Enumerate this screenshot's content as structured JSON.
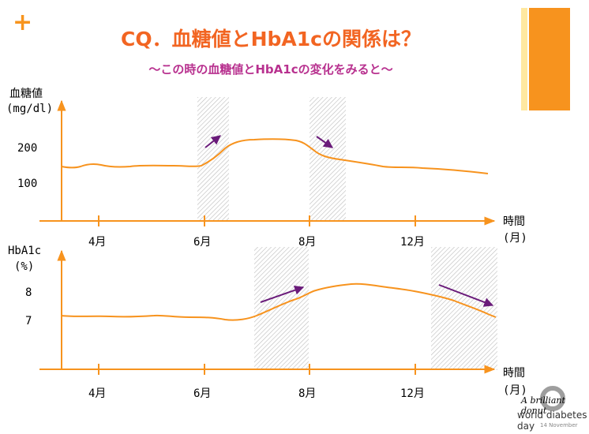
{
  "header": {
    "plus_icon": "+",
    "title": "CQ．血糖値とHbA1cの関係は？",
    "subtitle": "〜この時の血糖値とHbA1cの変化をみると〜"
  },
  "chart_data": [
    {
      "type": "line",
      "ylabel_line1": "血糖値",
      "ylabel_line2": "(mg/dl)",
      "yticks": [
        "200",
        "100"
      ],
      "xticks": [
        "4月",
        "6月",
        "8月",
        "12月"
      ],
      "xlabel_line1": "時間",
      "xlabel_line2": "(月)",
      "note": "shaded regions with arrows mark rising and falling periods"
    },
    {
      "type": "line",
      "ylabel_line1": "HbA1c",
      "ylabel_line2": "(%)",
      "yticks": [
        "8",
        "7"
      ],
      "xticks": [
        "4月",
        "6月",
        "8月",
        "12月"
      ],
      "xlabel_line1": "時間",
      "xlabel_line2": "(月)"
    }
  ],
  "colors": {
    "accent_orange": "#F7931E",
    "title_orange": "#F26522",
    "subtitle_magenta": "#B8318F",
    "arrow_purple": "#6A1B7A"
  },
  "logo": {
    "script": "A brilliant donut",
    "name": "world diabetes day",
    "date": "14 November"
  }
}
